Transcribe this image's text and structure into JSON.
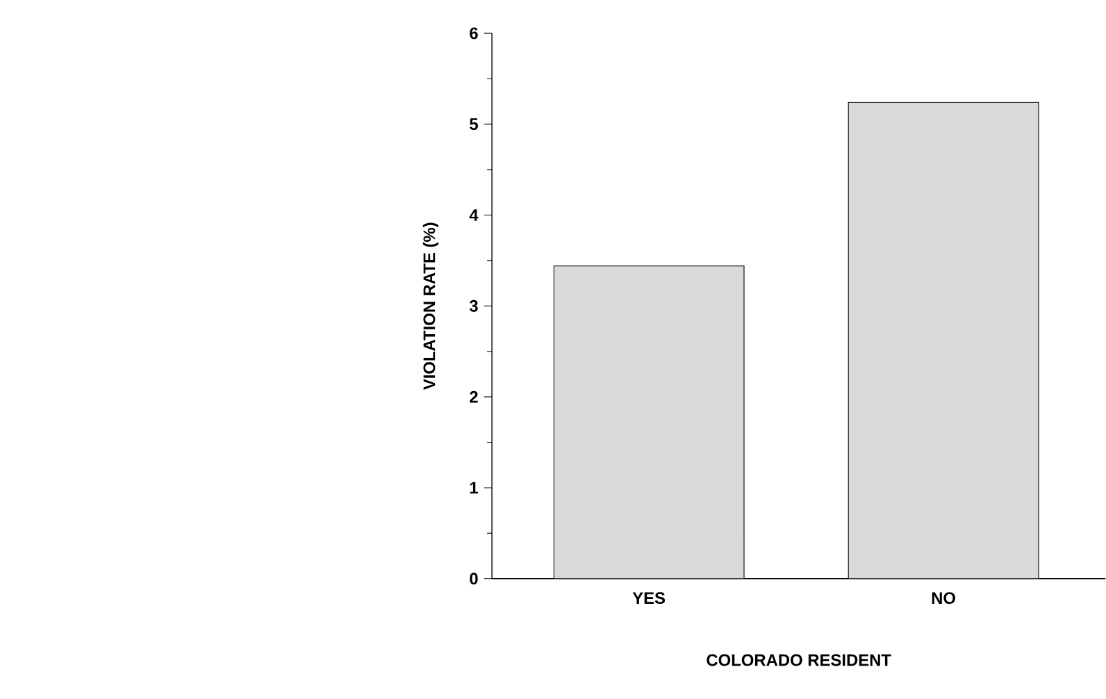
{
  "chart_data": {
    "type": "bar",
    "xlabel": "COLORADO RESIDENT",
    "ylabel": "VIOLATION RATE (%)",
    "categories": [
      "YES",
      "NO"
    ],
    "values": [
      3.44,
      5.24
    ],
    "color": "#d9d9d9",
    "ylim": [
      0,
      6
    ],
    "yticks": [
      0,
      1,
      2,
      3,
      4,
      5,
      6
    ],
    "grid": false
  }
}
